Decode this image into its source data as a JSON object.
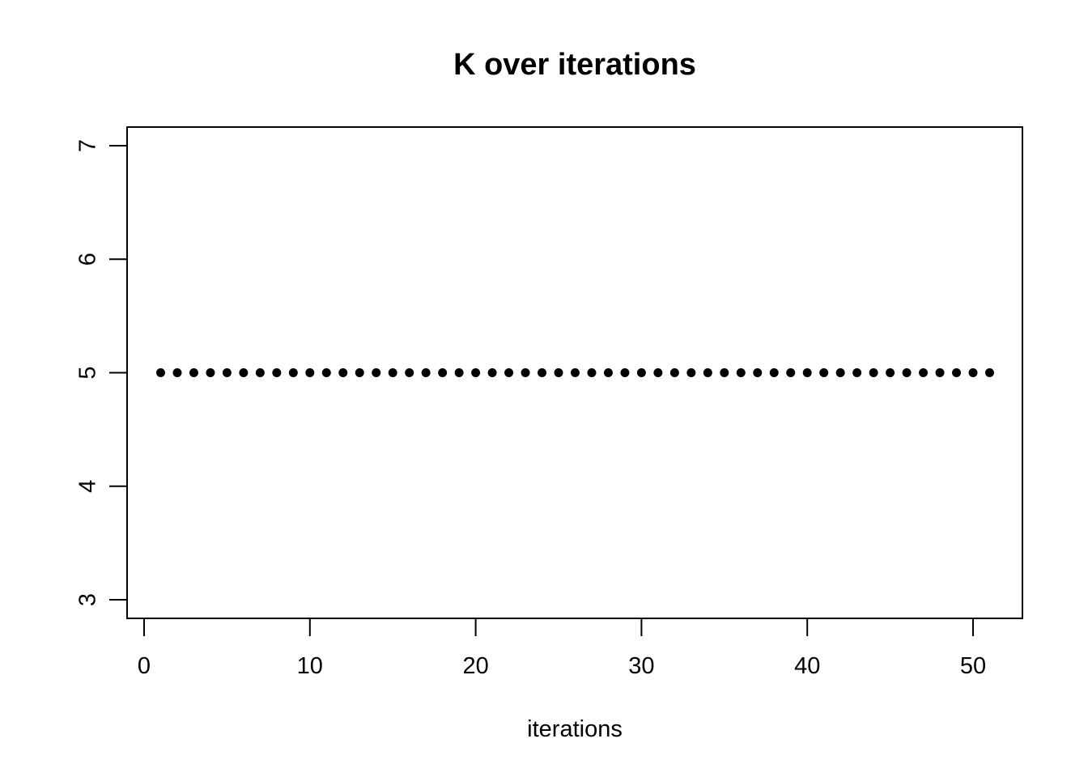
{
  "chart_data": {
    "type": "scatter",
    "title": "K over iterations",
    "xlabel": "iterations",
    "ylabel": "",
    "xlim": [
      0,
      51
    ],
    "ylim": [
      3,
      7
    ],
    "x_ticks": [
      "0",
      "10",
      "20",
      "30",
      "40",
      "50"
    ],
    "y_ticks": [
      "3",
      "4",
      "5",
      "6",
      "7"
    ],
    "grid": false,
    "point_color": "#000000",
    "series": [
      {
        "x": [
          1,
          2,
          3,
          4,
          5,
          6,
          7,
          8,
          9,
          10,
          11,
          12,
          13,
          14,
          15,
          16,
          17,
          18,
          19,
          20,
          21,
          22,
          23,
          24,
          25,
          26,
          27,
          28,
          29,
          30,
          31,
          32,
          33,
          34,
          35,
          36,
          37,
          38,
          39,
          40,
          41,
          42,
          43,
          44,
          45,
          46,
          47,
          48,
          49,
          50,
          51
        ],
        "y": [
          5,
          5,
          5,
          5,
          5,
          5,
          5,
          5,
          5,
          5,
          5,
          5,
          5,
          5,
          5,
          5,
          5,
          5,
          5,
          5,
          5,
          5,
          5,
          5,
          5,
          5,
          5,
          5,
          5,
          5,
          5,
          5,
          5,
          5,
          5,
          5,
          5,
          5,
          5,
          5,
          5,
          5,
          5,
          5,
          5,
          5,
          5,
          5,
          5,
          5,
          5
        ]
      }
    ]
  }
}
